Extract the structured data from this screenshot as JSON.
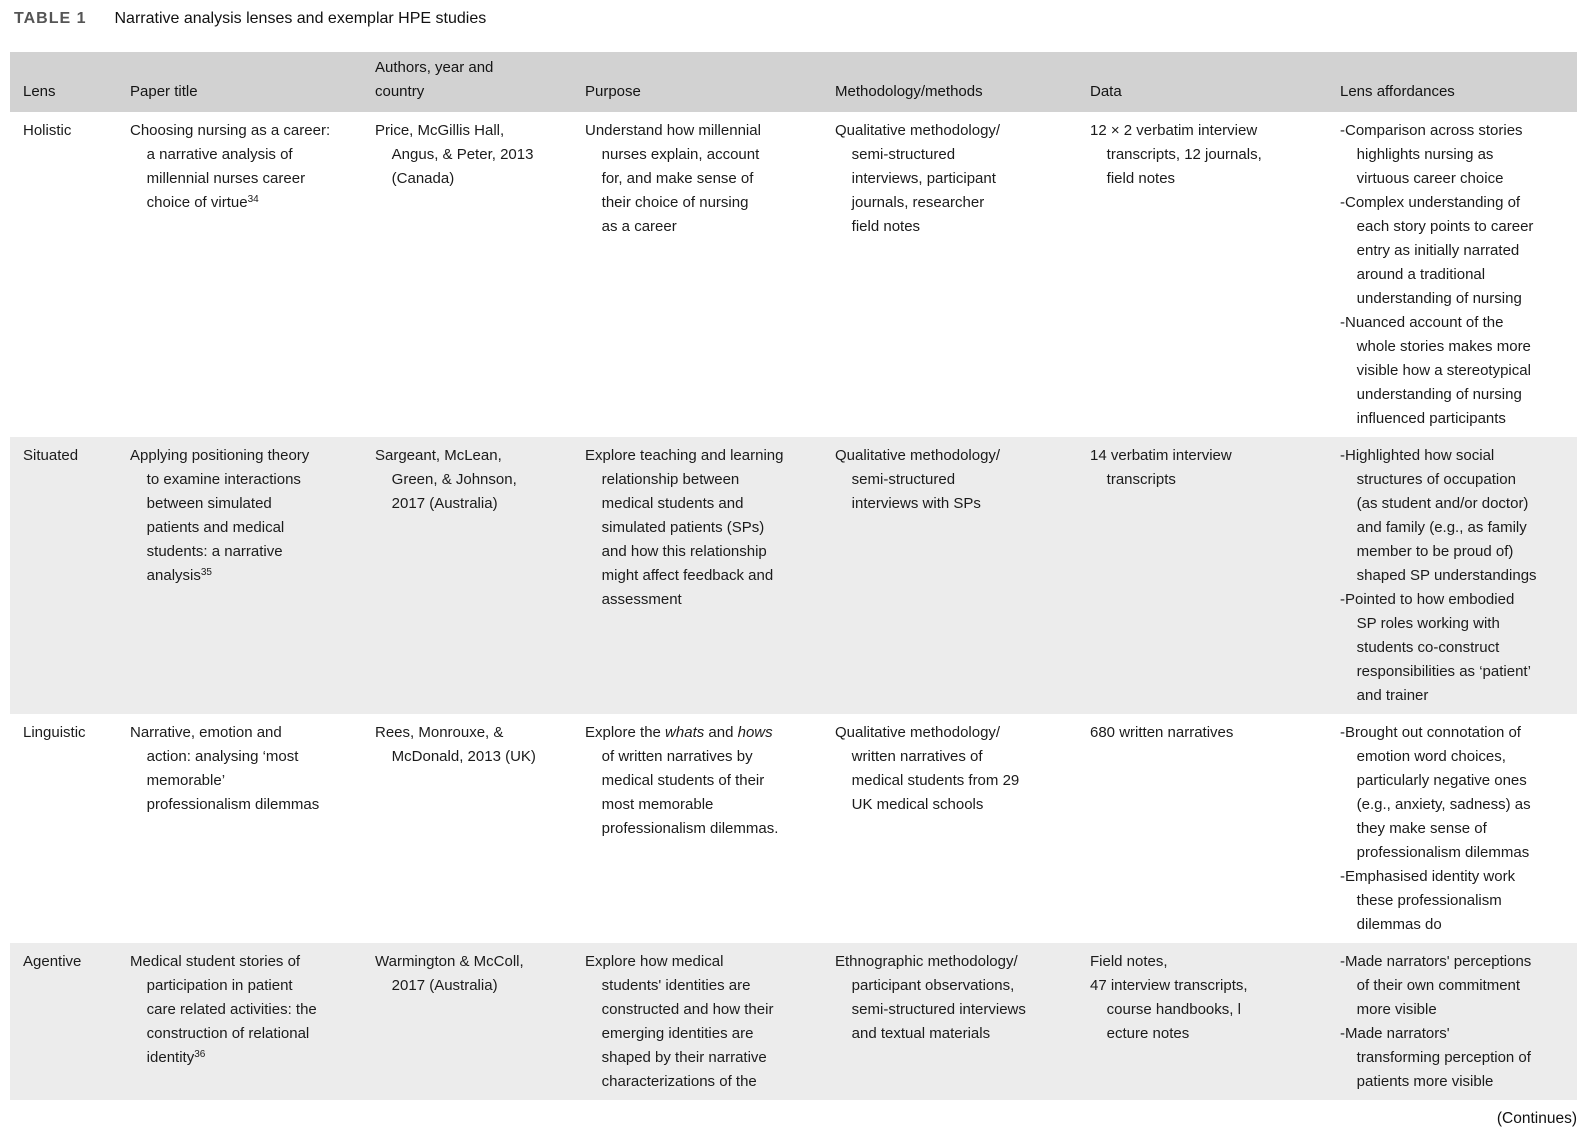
{
  "caption": {
    "label": "TABLE 1",
    "title": "Narrative analysis lenses and exemplar HPE studies"
  },
  "table": {
    "headers": [
      "Lens",
      "Paper title",
      "Authors, year and\ncountry",
      "Purpose",
      "Methodology/methods",
      "Data",
      "Lens affordances"
    ],
    "rows": [
      {
        "cells": [
          "Holistic",
          "Choosing nursing as a career:\n    a narrative analysis of\n    millennial nurses career\n    choice of virtue^{34}",
          "Price, McGillis Hall,\n    Angus, & Peter, 2013\n    (Canada)",
          "Understand how millennial\n    nurses explain, account\n    for, and make sense of\n    their choice of nursing\n    as a career",
          "Qualitative methodology/\n    semi-structured\n    interviews, participant\n    journals, researcher\n    field notes",
          "12 × 2 verbatim interview\n    transcripts, 12 journals,\n    field notes",
          "-Comparison across stories\n    highlights nursing as\n    virtuous career choice\n-Complex understanding of\n    each story points to career\n    entry as initially narrated\n    around a traditional\n    understanding of nursing\n-Nuanced account of the\n    whole stories makes more\n    visible how a stereotypical\n    understanding of nursing\n    influenced participants"
        ]
      },
      {
        "cells": [
          "Situated",
          "Applying positioning theory\n    to examine interactions\n    between simulated\n    patients and medical\n    students: a narrative\n    analysis^{35}",
          "Sargeant, McLean,\n    Green, & Johnson,\n    2017 (Australia)",
          "Explore teaching and learning\n    relationship between\n    medical students and\n    simulated patients (SPs)\n    and how this relationship\n    might affect feedback and\n    assessment",
          "Qualitative methodology/\n    semi-structured\n    interviews with SPs",
          "14 verbatim interview\n    transcripts",
          "-Highlighted how social\n    structures of occupation\n    (as student and/or doctor)\n    and family (e.g., as family\n    member to be proud of)\n    shaped SP understandings\n-Pointed to how embodied\n    SP roles working with\n    students co-construct\n    responsibilities as ‘patient’\n    and trainer"
        ]
      },
      {
        "cells": [
          "Linguistic",
          "Narrative, emotion and\n    action: analysing ‘most\n    memorable’\n    professionalism dilemmas",
          "Rees, Monrouxe, &\n    McDonald, 2013 (UK)",
          "Explore the *whats* and *hows*\n    of written narratives by\n    medical students of their\n    most memorable\n    professionalism dilemmas.",
          "Qualitative methodology/\n    written narratives of\n    medical students from 29\n    UK medical schools",
          "680 written narratives",
          "-Brought out connotation of\n    emotion word choices,\n    particularly negative ones\n    (e.g., anxiety, sadness) as\n    they make sense of\n    professionalism dilemmas\n-Emphasised identity work\n    these professionalism\n    dilemmas do"
        ]
      },
      {
        "cells": [
          "Agentive",
          "Medical student stories of\n    participation in patient\n    care related activities: the\n    construction of relational\n    identity^{36}",
          "Warmington & McColl,\n    2017 (Australia)",
          "Explore how medical\n    students' identities are\n    constructed and how their\n    emerging identities are\n    shaped by their narrative\n    characterizations of the",
          "Ethnographic methodology/\n    participant observations,\n    semi-structured interviews\n    and textual materials",
          "Field notes,\n47 interview transcripts,\n    course handbooks, l\n    ecture notes",
          "-Made narrators' perceptions\n    of their own commitment\n    more visible\n-Made narrators'\n    transforming perception of\n    patients more visible"
        ]
      }
    ]
  },
  "footer": {
    "continues": "(Continues)"
  }
}
